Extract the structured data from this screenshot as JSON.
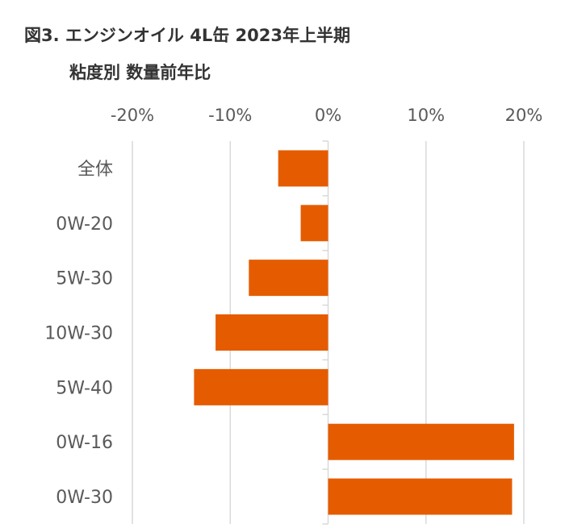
{
  "chart_data": {
    "type": "bar",
    "orientation": "horizontal",
    "title": "図3. エンジンオイル 4L缶 2023年上半期",
    "subtitle": "粘度別 数量前年比",
    "categories": [
      "全体",
      "0W-20",
      "5W-30",
      "10W-30",
      "5W-40",
      "0W-16",
      "0W-30"
    ],
    "values": [
      -5.1,
      -2.8,
      -8.1,
      -11.5,
      -13.7,
      19.0,
      18.8
    ],
    "unit": "%",
    "xlim": [
      -20,
      20
    ],
    "xticks": [
      -20,
      -10,
      0,
      10,
      20
    ],
    "xtick_labels": [
      "-20%",
      "-10%",
      "0%",
      "10%",
      "20%"
    ],
    "xaxis_position": "top",
    "grid": true,
    "bar_color": "#E55C00",
    "grid_color": "#D9D9D9"
  }
}
